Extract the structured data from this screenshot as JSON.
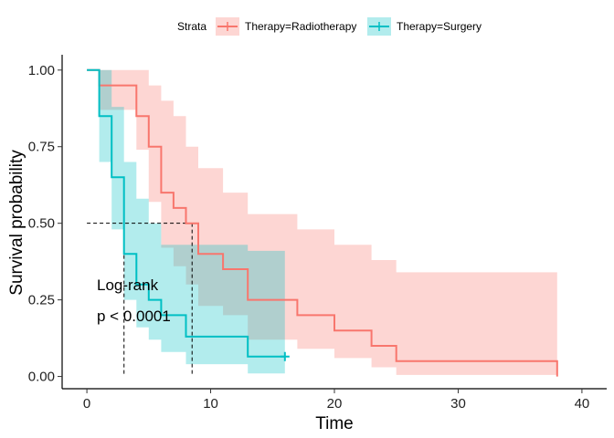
{
  "chart_data": {
    "type": "line",
    "subtype": "kaplan-meier survival curve",
    "xlabel": "Time",
    "ylabel": "Survival probability",
    "xlim": [
      -2,
      42
    ],
    "ylim": [
      -0.04,
      1.05
    ],
    "xticks": [
      0,
      10,
      20,
      30,
      40
    ],
    "yticks": [
      0.0,
      0.25,
      0.5,
      0.75,
      1.0
    ],
    "ytick_labels": [
      "0.00",
      "0.25",
      "0.50",
      "0.75",
      "1.00"
    ],
    "grid": false,
    "legend": {
      "title": "Strata",
      "position": "top",
      "entries": [
        "Therapy=Radiotherapy",
        "Therapy=Surgery"
      ]
    },
    "annotations": [
      "Log-rank",
      "p < 0.0001"
    ],
    "median_line_y": 0.5,
    "medians": [
      8.5,
      3
    ],
    "series": [
      {
        "name": "Therapy=Radiotherapy",
        "color": "#F8766D",
        "fill": "#F8766D",
        "steps": [
          [
            0,
            1.0
          ],
          [
            1,
            0.95
          ],
          [
            4,
            0.85
          ],
          [
            5,
            0.75
          ],
          [
            6,
            0.6
          ],
          [
            7,
            0.55
          ],
          [
            8,
            0.5
          ],
          [
            9,
            0.4
          ],
          [
            11,
            0.35
          ],
          [
            13,
            0.25
          ],
          [
            17,
            0.2
          ],
          [
            20,
            0.15
          ],
          [
            23,
            0.1
          ],
          [
            25,
            0.05
          ],
          [
            38,
            0.05
          ],
          [
            38,
            0.0
          ]
        ],
        "ci_upper": [
          [
            0,
            1.0
          ],
          [
            1,
            1.0
          ],
          [
            5,
            0.95
          ],
          [
            6,
            0.9
          ],
          [
            7,
            0.85
          ],
          [
            8,
            0.75
          ],
          [
            9,
            0.68
          ],
          [
            11,
            0.6
          ],
          [
            13,
            0.53
          ],
          [
            17,
            0.48
          ],
          [
            20,
            0.43
          ],
          [
            23,
            0.38
          ],
          [
            25,
            0.34
          ],
          [
            38,
            0.34
          ]
        ],
        "ci_lower": [
          [
            0,
            1.0
          ],
          [
            1,
            0.87
          ],
          [
            4,
            0.74
          ],
          [
            5,
            0.57
          ],
          [
            6,
            0.42
          ],
          [
            7,
            0.36
          ],
          [
            8,
            0.3
          ],
          [
            9,
            0.23
          ],
          [
            11,
            0.2
          ],
          [
            13,
            0.12
          ],
          [
            17,
            0.09
          ],
          [
            20,
            0.06
          ],
          [
            23,
            0.03
          ],
          [
            25,
            0.005
          ],
          [
            38,
            0.005
          ]
        ]
      },
      {
        "name": "Therapy=Surgery",
        "color": "#00BFC4",
        "fill": "#00BFC4",
        "steps": [
          [
            0,
            1.0
          ],
          [
            1,
            0.85
          ],
          [
            2,
            0.65
          ],
          [
            3,
            0.4
          ],
          [
            4,
            0.3
          ],
          [
            5,
            0.25
          ],
          [
            6,
            0.2
          ],
          [
            8,
            0.13
          ],
          [
            13,
            0.065
          ],
          [
            16,
            0.065
          ]
        ],
        "censor": [
          [
            16,
            0.065
          ]
        ],
        "ci_upper": [
          [
            0,
            1.0
          ],
          [
            1,
            1.0
          ],
          [
            2,
            0.88
          ],
          [
            3,
            0.7
          ],
          [
            4,
            0.58
          ],
          [
            5,
            0.5
          ],
          [
            6,
            0.43
          ],
          [
            8,
            0.43
          ],
          [
            13,
            0.41
          ],
          [
            16,
            0.41
          ]
        ],
        "ci_lower": [
          [
            0,
            1.0
          ],
          [
            1,
            0.7
          ],
          [
            2,
            0.48
          ],
          [
            3,
            0.25
          ],
          [
            4,
            0.16
          ],
          [
            5,
            0.12
          ],
          [
            6,
            0.08
          ],
          [
            8,
            0.04
          ],
          [
            13,
            0.01
          ],
          [
            16,
            0.01
          ]
        ]
      }
    ]
  }
}
